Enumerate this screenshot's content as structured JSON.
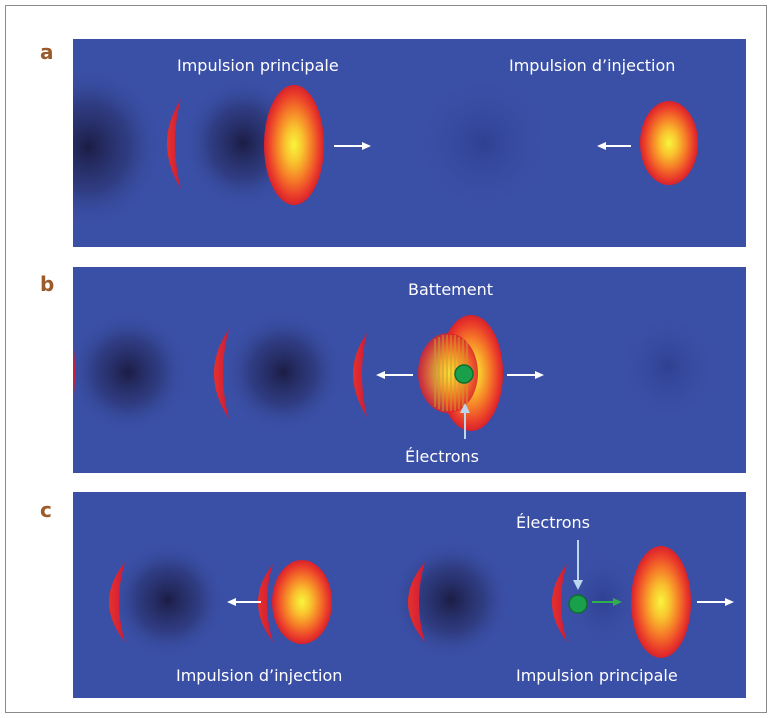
{
  "panels": [
    {
      "letter": "a",
      "labels": {
        "main_pulse": "Impulsion principale",
        "injection_pulse": "Impulsion d’injection"
      }
    },
    {
      "letter": "b",
      "labels": {
        "beat": "Battement",
        "electrons": "Électrons"
      }
    },
    {
      "letter": "c",
      "labels": {
        "electrons": "Électrons",
        "injection_pulse": "Impulsion d’injection",
        "main_pulse": "Impulsion principale"
      }
    }
  ],
  "colors": {
    "background_blue": "#3a4fa6",
    "letter": "#9a5a2a",
    "pulse_core": "#f7f23a",
    "pulse_edge": "#e8242a",
    "electron": "#1aa04a",
    "arrow": "#ffffff",
    "electron_arrow": "#2fb04a",
    "pointer": "#bcd6ee"
  }
}
